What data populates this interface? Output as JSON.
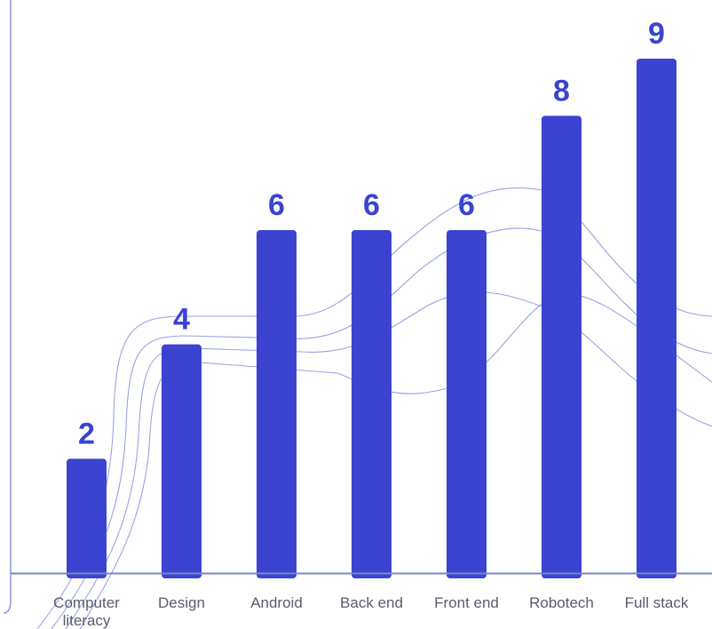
{
  "colors": {
    "bar": "#3a44d0",
    "value_text": "#3a44d0",
    "label_text": "#5a5a70",
    "axis": "#7a86c4",
    "frame": "#8e96d2",
    "curves": "#9aa2e4"
  },
  "chart_data": {
    "type": "bar",
    "categories": [
      "Computer literacy",
      "Design",
      "Android",
      "Back end",
      "Front end",
      "Robotech",
      "Full stack"
    ],
    "category_lines": [
      [
        "Computer",
        "literacy"
      ],
      [
        "Design"
      ],
      [
        "Android"
      ],
      [
        "Back end"
      ],
      [
        "Front end"
      ],
      [
        "Robotech"
      ],
      [
        "Full stack"
      ]
    ],
    "values": [
      2,
      4,
      6,
      6,
      6,
      8,
      9
    ],
    "value_labels": [
      "2",
      "4",
      "6",
      "6",
      "6",
      "8",
      "9"
    ],
    "ylim": [
      0,
      9
    ],
    "grid": false,
    "legend": "none",
    "title": "",
    "xlabel": "",
    "ylabel": ""
  }
}
